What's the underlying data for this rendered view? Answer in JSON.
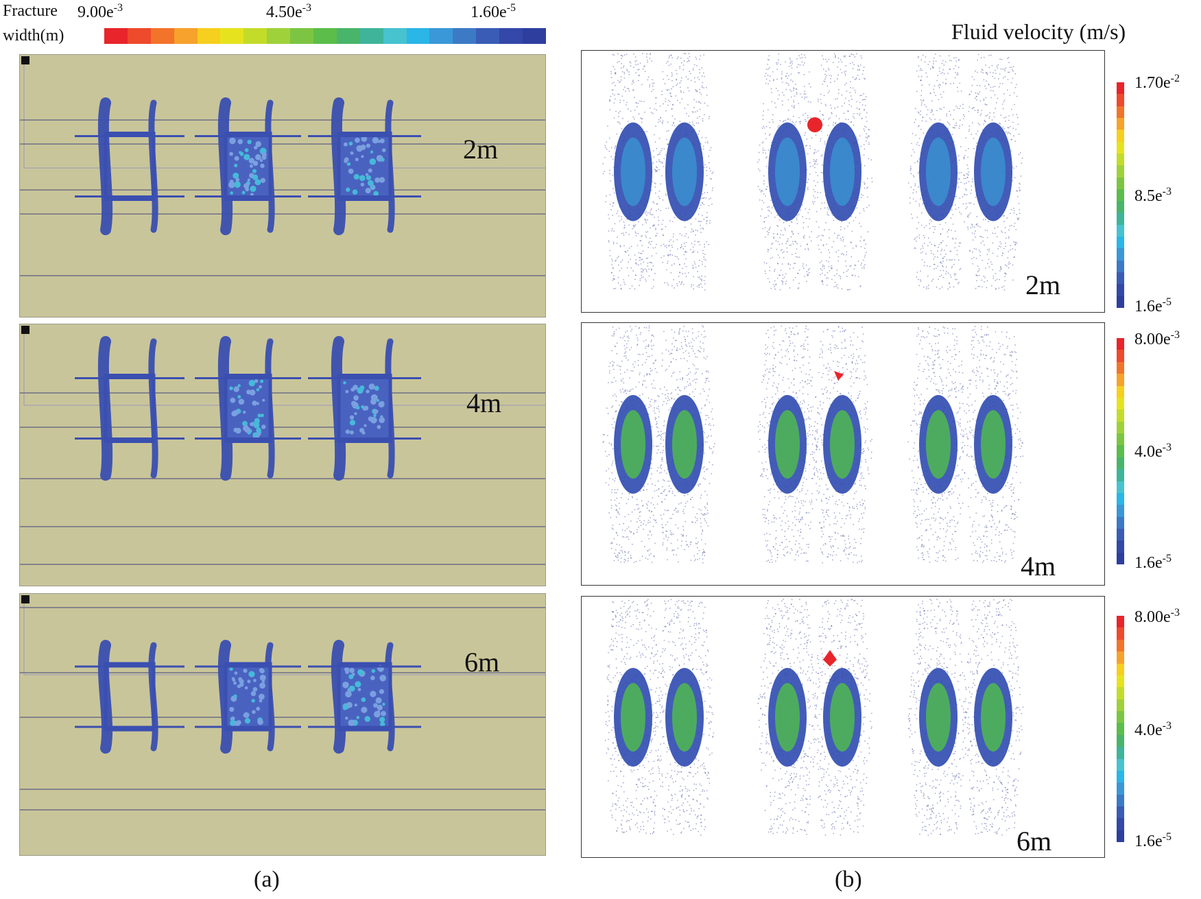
{
  "legend_a": {
    "title_line1": "Fracture",
    "title_line2": "width(m)",
    "ticks": [
      {
        "base": "9.00e",
        "exp": "-3"
      },
      {
        "base": "4.50e",
        "exp": "-3"
      },
      {
        "base": "1.60e",
        "exp": "-5"
      }
    ],
    "colors": [
      "#e8252a",
      "#ee4a2c",
      "#f2742a",
      "#f6a22c",
      "#f7cf1e",
      "#e6e31e",
      "#c3dc2a",
      "#9fd13a",
      "#7cc542",
      "#5cbd4a",
      "#49b56a",
      "#3fb49a",
      "#46c3cf",
      "#2ab6e6",
      "#3a98d8",
      "#3c7ac6",
      "#3a5cb6",
      "#3348a8",
      "#2e3e9e"
    ]
  },
  "legend_b": {
    "title": "Fluid velocity (m/s)",
    "colors": [
      "#e8252a",
      "#ee4a2c",
      "#f2742a",
      "#f6a22c",
      "#f7cf1e",
      "#e6e31e",
      "#c3dc2a",
      "#9fd13a",
      "#7cc542",
      "#5cbd4a",
      "#49b56a",
      "#3fb49a",
      "#46c3cf",
      "#2ab6e6",
      "#3a98d8",
      "#3c7ac6",
      "#3a5cb6",
      "#3348a8",
      "#2e3e9e"
    ],
    "bars": [
      {
        "max": {
          "base": "1.70e",
          "exp": "-2"
        },
        "mid": {
          "base": "8.5e",
          "exp": "-3"
        },
        "min": {
          "base": "1.6e",
          "exp": "-5"
        }
      },
      {
        "max": {
          "base": "8.00e",
          "exp": "-3"
        },
        "mid": {
          "base": "4.0e",
          "exp": "-3"
        },
        "min": {
          "base": "1.6e",
          "exp": "-5"
        }
      },
      {
        "max": {
          "base": "8.00e",
          "exp": "-3"
        },
        "mid": {
          "base": "4.0e",
          "exp": "-3"
        },
        "min": {
          "base": "1.6e",
          "exp": "-5"
        }
      }
    ]
  },
  "rows": [
    {
      "label_a": "2m",
      "label_b": "2m"
    },
    {
      "label_a": "4m",
      "label_b": "4m"
    },
    {
      "label_a": "6m",
      "label_b": "6m"
    }
  ],
  "captions": {
    "a": "(a)",
    "b": "(b)"
  },
  "colors": {
    "panel_bg": "#c9c59a",
    "fracture_blue": "#3a4fb0",
    "core_green": "#4fb84f"
  }
}
